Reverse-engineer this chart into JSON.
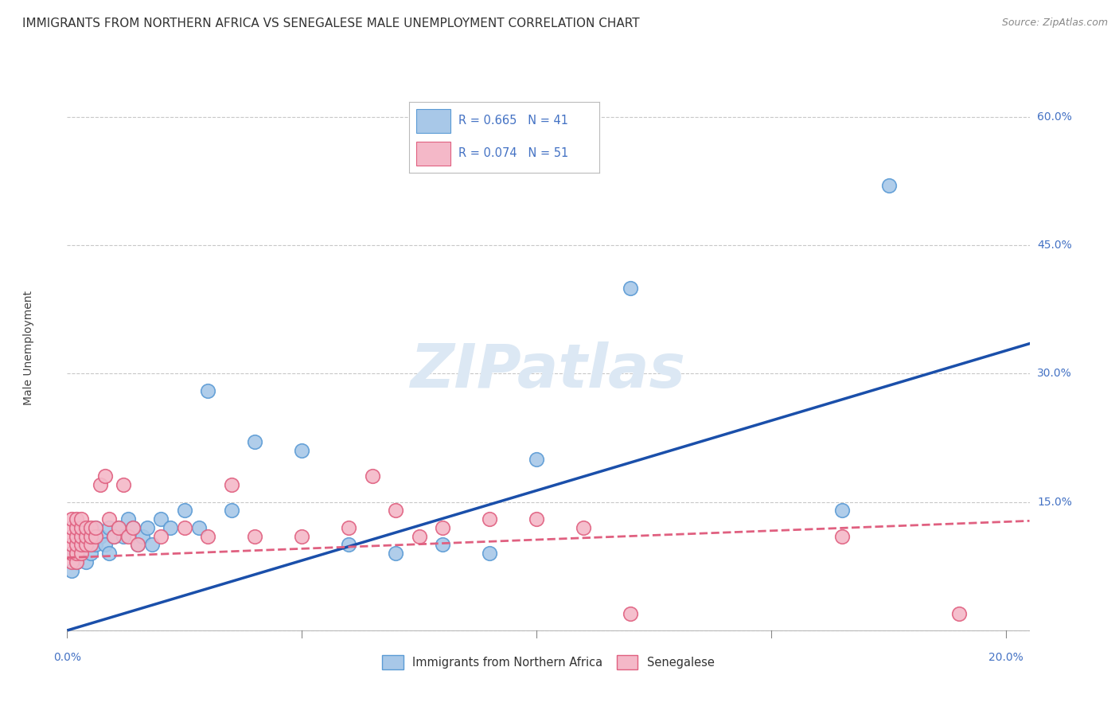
{
  "title": "IMMIGRANTS FROM NORTHERN AFRICA VS SENEGALESE MALE UNEMPLOYMENT CORRELATION CHART",
  "source": "Source: ZipAtlas.com",
  "ylabel": "Male Unemployment",
  "xlim": [
    0,
    0.205
  ],
  "ylim": [
    -0.01,
    0.67
  ],
  "yticks_right": [
    0.0,
    0.15,
    0.3,
    0.45,
    0.6
  ],
  "ytick_labels_right": [
    "",
    "15.0%",
    "30.0%",
    "45.0%",
    "60.0%"
  ],
  "xticks": [
    0.0,
    0.05,
    0.1,
    0.15,
    0.2
  ],
  "xtick_labels": [
    "0.0%",
    "",
    "",
    "",
    "20.0%"
  ],
  "blue_scatter_x": [
    0.001,
    0.001,
    0.002,
    0.002,
    0.003,
    0.003,
    0.004,
    0.004,
    0.005,
    0.005,
    0.006,
    0.006,
    0.007,
    0.008,
    0.009,
    0.009,
    0.01,
    0.011,
    0.012,
    0.013,
    0.014,
    0.015,
    0.016,
    0.017,
    0.018,
    0.02,
    0.022,
    0.025,
    0.028,
    0.03,
    0.035,
    0.04,
    0.05,
    0.06,
    0.07,
    0.08,
    0.09,
    0.1,
    0.12,
    0.165,
    0.175
  ],
  "blue_scatter_y": [
    0.09,
    0.07,
    0.08,
    0.1,
    0.09,
    0.11,
    0.1,
    0.08,
    0.09,
    0.11,
    0.1,
    0.12,
    0.11,
    0.1,
    0.12,
    0.09,
    0.11,
    0.12,
    0.11,
    0.13,
    0.12,
    0.1,
    0.11,
    0.12,
    0.1,
    0.13,
    0.12,
    0.14,
    0.12,
    0.28,
    0.14,
    0.22,
    0.21,
    0.1,
    0.09,
    0.1,
    0.09,
    0.2,
    0.4,
    0.14,
    0.52
  ],
  "pink_scatter_x": [
    0.001,
    0.001,
    0.001,
    0.001,
    0.001,
    0.001,
    0.002,
    0.002,
    0.002,
    0.002,
    0.002,
    0.002,
    0.003,
    0.003,
    0.003,
    0.003,
    0.003,
    0.004,
    0.004,
    0.004,
    0.005,
    0.005,
    0.005,
    0.006,
    0.006,
    0.007,
    0.008,
    0.009,
    0.01,
    0.011,
    0.012,
    0.013,
    0.014,
    0.015,
    0.02,
    0.025,
    0.03,
    0.035,
    0.04,
    0.05,
    0.06,
    0.065,
    0.07,
    0.075,
    0.08,
    0.09,
    0.1,
    0.11,
    0.12,
    0.165,
    0.19
  ],
  "pink_scatter_y": [
    0.08,
    0.09,
    0.1,
    0.11,
    0.12,
    0.13,
    0.08,
    0.09,
    0.1,
    0.11,
    0.12,
    0.13,
    0.09,
    0.1,
    0.11,
    0.12,
    0.13,
    0.1,
    0.11,
    0.12,
    0.1,
    0.11,
    0.12,
    0.11,
    0.12,
    0.17,
    0.18,
    0.13,
    0.11,
    0.12,
    0.17,
    0.11,
    0.12,
    0.1,
    0.11,
    0.12,
    0.11,
    0.17,
    0.11,
    0.11,
    0.12,
    0.18,
    0.14,
    0.11,
    0.12,
    0.13,
    0.13,
    0.12,
    0.02,
    0.11,
    0.02
  ],
  "blue_line_x": [
    0.0,
    0.205
  ],
  "blue_line_y": [
    0.0,
    0.335
  ],
  "pink_line_x": [
    0.0,
    0.205
  ],
  "pink_line_y": [
    0.085,
    0.128
  ],
  "blue_scatter_color": "#a8c8e8",
  "blue_scatter_edge": "#5b9bd5",
  "pink_scatter_color": "#f4b8c8",
  "pink_scatter_edge": "#e06080",
  "blue_trend_color": "#1a4faa",
  "pink_trend_color": "#e06080",
  "grid_color": "#c8c8c8",
  "background_color": "#ffffff",
  "title_color": "#333333",
  "axis_label_color": "#444444",
  "tick_color": "#4472c4",
  "source_color": "#888888",
  "watermark_text": "ZIPatlas",
  "watermark_color": "#dce8f4",
  "legend_label1": "R = 0.665   N = 41",
  "legend_label2": "R = 0.074   N = 51",
  "legend_color": "#4472c4",
  "bottom_legend1": "Immigrants from Northern Africa",
  "bottom_legend2": "Senegalese",
  "title_fontsize": 11,
  "source_fontsize": 9,
  "tick_fontsize": 10,
  "ylabel_fontsize": 10,
  "legend_fontsize": 10.5,
  "watermark_fontsize": 55
}
